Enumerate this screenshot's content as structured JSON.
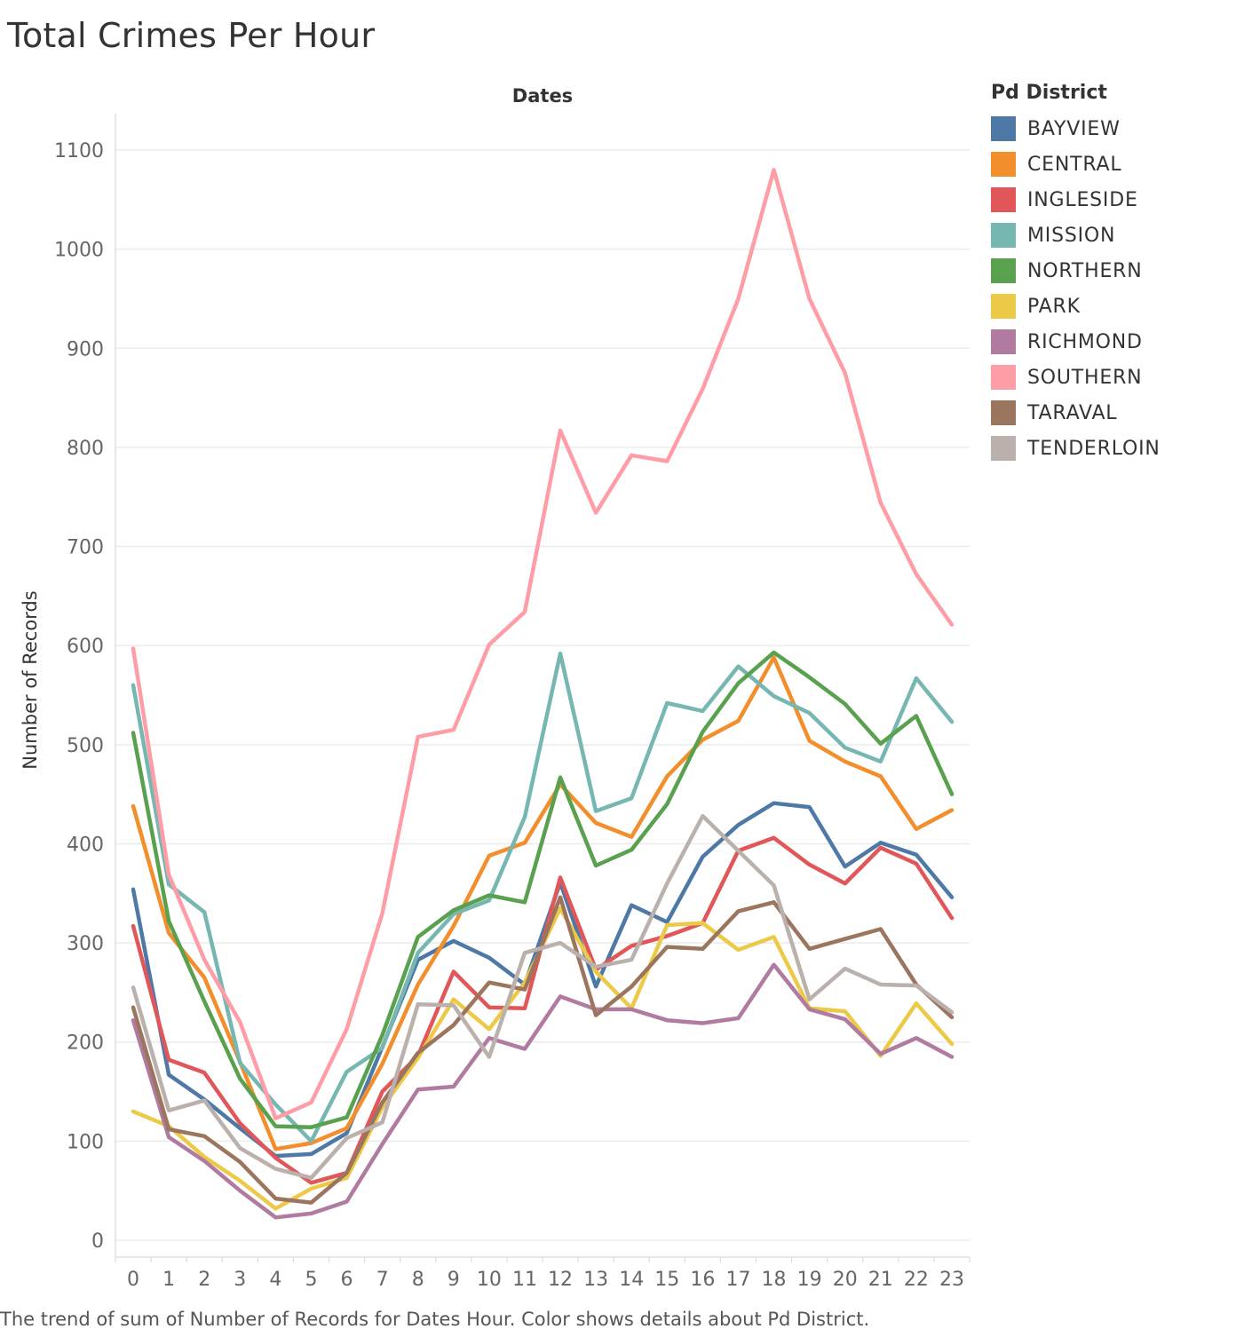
{
  "title": "Total Crimes Per Hour",
  "caption": "The trend of sum of Number of Records for Dates Hour.  Color shows details about Pd District.",
  "chart_data": {
    "type": "line",
    "title": "Total Crimes Per Hour",
    "header": "Dates",
    "xlabel": "",
    "ylabel": "Number of Records",
    "x": [
      0,
      1,
      2,
      3,
      4,
      5,
      6,
      7,
      8,
      9,
      10,
      11,
      12,
      13,
      14,
      15,
      16,
      17,
      18,
      19,
      20,
      21,
      22,
      23
    ],
    "y_ticks": [
      0,
      100,
      200,
      300,
      400,
      500,
      600,
      700,
      800,
      900,
      1000,
      1100
    ],
    "ylim": [
      -20,
      1150
    ],
    "grid": true,
    "legend_title": "Pd District",
    "legend_position": "right",
    "series": [
      {
        "name": "BAYVIEW",
        "color": "#4e79a7",
        "values": [
          354,
          167,
          142,
          113,
          85,
          87,
          108,
          195,
          283,
          302,
          285,
          258,
          361,
          256,
          338,
          321,
          387,
          419,
          441,
          437,
          377,
          401,
          389,
          346
        ]
      },
      {
        "name": "CENTRAL",
        "color": "#f28e2b",
        "values": [
          438,
          310,
          265,
          180,
          92,
          98,
          113,
          178,
          258,
          317,
          388,
          401,
          460,
          421,
          407,
          468,
          505,
          524,
          588,
          504,
          483,
          468,
          415,
          434
        ]
      },
      {
        "name": "INGLESIDE",
        "color": "#e15759",
        "values": [
          317,
          182,
          169,
          118,
          83,
          58,
          68,
          150,
          186,
          271,
          235,
          234,
          366,
          273,
          297,
          307,
          320,
          393,
          406,
          379,
          360,
          396,
          380,
          325
        ]
      },
      {
        "name": "MISSION",
        "color": "#76b7b2",
        "values": [
          560,
          359,
          331,
          179,
          137,
          100,
          170,
          194,
          290,
          329,
          343,
          427,
          592,
          433,
          446,
          542,
          534,
          579,
          549,
          532,
          497,
          483,
          567,
          523
        ]
      },
      {
        "name": "NORTHERN",
        "color": "#59a14f",
        "values": [
          512,
          322,
          241,
          163,
          115,
          114,
          124,
          207,
          306,
          333,
          348,
          341,
          467,
          378,
          394,
          440,
          513,
          562,
          593,
          568,
          541,
          501,
          529,
          450
        ]
      },
      {
        "name": "PARK",
        "color": "#edc948",
        "values": [
          130,
          115,
          84,
          60,
          32,
          52,
          63,
          134,
          184,
          243,
          213,
          260,
          335,
          271,
          234,
          318,
          320,
          293,
          306,
          234,
          231,
          186,
          239,
          198
        ]
      },
      {
        "name": "RICHMOND",
        "color": "#b07aa1",
        "values": [
          222,
          104,
          80,
          50,
          23,
          27,
          39,
          97,
          152,
          155,
          204,
          193,
          246,
          233,
          233,
          222,
          219,
          224,
          278,
          233,
          223,
          188,
          204,
          185
        ]
      },
      {
        "name": "SOUTHERN",
        "color": "#ff9da7",
        "values": [
          597,
          369,
          283,
          220,
          123,
          139,
          213,
          330,
          508,
          515,
          601,
          634,
          817,
          734,
          792,
          786,
          859,
          950,
          1080,
          950,
          875,
          744,
          672,
          621
        ]
      },
      {
        "name": "TARAVAL",
        "color": "#9c755f",
        "values": [
          235,
          112,
          105,
          79,
          42,
          38,
          68,
          139,
          189,
          217,
          260,
          253,
          346,
          227,
          256,
          296,
          294,
          332,
          341,
          294,
          304,
          314,
          258,
          225
        ]
      },
      {
        "name": "TENDERLOIN",
        "color": "#bab0ac",
        "values": [
          255,
          131,
          141,
          93,
          72,
          63,
          103,
          119,
          238,
          237,
          185,
          290,
          300,
          276,
          283,
          360,
          428,
          393,
          358,
          243,
          274,
          258,
          257,
          230
        ]
      }
    ]
  }
}
